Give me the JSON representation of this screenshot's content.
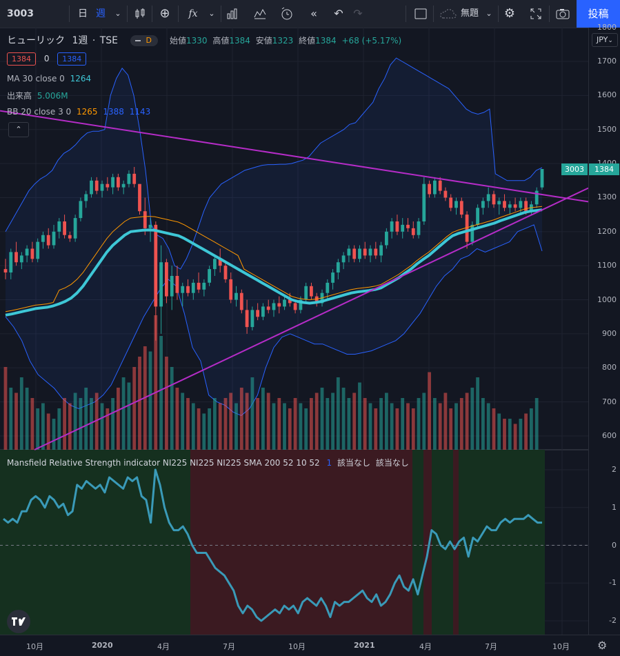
{
  "toolbar": {
    "symbol": "3003",
    "interval_day": "日",
    "interval_week": "週",
    "indicators_label": "fx",
    "layout_name": "無題",
    "post_label": "投稿"
  },
  "header": {
    "name": "ヒューリック",
    "interval": "1週",
    "exchange": "TSE",
    "d_badge": "D",
    "open_label": "始値",
    "open": "1330",
    "high_label": "高値",
    "high": "1384",
    "low_label": "安値",
    "low": "1323",
    "close_label": "終値",
    "close": "1384",
    "change": "+68 (+5.17%)",
    "sell": "1384",
    "spread": "0",
    "buy": "1384"
  },
  "legends": {
    "ma": {
      "label": "MA 30 close 0",
      "value": "1264"
    },
    "volume": {
      "label": "出来高",
      "value": "5.006M"
    },
    "bb": {
      "label": "BB 20 close 3 0",
      "basis": "1265",
      "upper": "1388",
      "lower": "1143"
    },
    "mansfield": {
      "label": "Mansfield Relative Strength indicator NI225 NI225 NI225 SMA 200 52 10 52",
      "value": "1",
      "na1": "該当なし",
      "na2": "該当なし"
    }
  },
  "price_axis": {
    "currency": "JPY",
    "labels": [
      "1800",
      "1700",
      "1600",
      "1500",
      "1400",
      "1300",
      "1200",
      "1100",
      "1000",
      "900",
      "800",
      "700",
      "600"
    ],
    "symbol_tag": "3003",
    "last_price": "1384"
  },
  "rs_axis": {
    "labels": [
      "2",
      "1",
      "0",
      "-1",
      "-2"
    ]
  },
  "time_axis": {
    "labels": [
      "10月",
      "2020",
      "4月",
      "7月",
      "10月",
      "2021",
      "4月",
      "7月",
      "10月"
    ]
  },
  "colors": {
    "up": "#26a69a",
    "down": "#ef5350",
    "ma": "#3ec7d6",
    "bb": "#2962ff",
    "bb_basis": "#ff9800",
    "trend": "#b52cc7",
    "rs": "#3a9ab8"
  },
  "chart_data": [
    {
      "type": "candlestick",
      "title": "",
      "y_axis_range": [
        550,
        1800
      ],
      "candles": [
        {
          "o": 1090,
          "h": 1120,
          "l": 1060,
          "c": 1080
        },
        {
          "o": 1080,
          "h": 1150,
          "l": 1060,
          "c": 1140
        },
        {
          "o": 1140,
          "h": 1170,
          "l": 1100,
          "c": 1110
        },
        {
          "o": 1110,
          "h": 1140,
          "l": 1090,
          "c": 1130
        },
        {
          "o": 1130,
          "h": 1160,
          "l": 1110,
          "c": 1150
        },
        {
          "o": 1150,
          "h": 1170,
          "l": 1110,
          "c": 1120
        },
        {
          "o": 1120,
          "h": 1180,
          "l": 1110,
          "c": 1170
        },
        {
          "o": 1170,
          "h": 1200,
          "l": 1150,
          "c": 1190
        },
        {
          "o": 1190,
          "h": 1210,
          "l": 1150,
          "c": 1160
        },
        {
          "o": 1160,
          "h": 1220,
          "l": 1150,
          "c": 1200
        },
        {
          "o": 1200,
          "h": 1240,
          "l": 1180,
          "c": 1230
        },
        {
          "o": 1230,
          "h": 1250,
          "l": 1180,
          "c": 1190
        },
        {
          "o": 1190,
          "h": 1200,
          "l": 1170,
          "c": 1180
        },
        {
          "o": 1180,
          "h": 1250,
          "l": 1170,
          "c": 1240
        },
        {
          "o": 1240,
          "h": 1300,
          "l": 1230,
          "c": 1290
        },
        {
          "o": 1290,
          "h": 1320,
          "l": 1270,
          "c": 1310
        },
        {
          "o": 1310,
          "h": 1360,
          "l": 1300,
          "c": 1350
        },
        {
          "o": 1350,
          "h": 1360,
          "l": 1310,
          "c": 1320
        },
        {
          "o": 1320,
          "h": 1350,
          "l": 1300,
          "c": 1340
        },
        {
          "o": 1340,
          "h": 1360,
          "l": 1320,
          "c": 1330
        },
        {
          "o": 1330,
          "h": 1370,
          "l": 1310,
          "c": 1360
        },
        {
          "o": 1360,
          "h": 1370,
          "l": 1320,
          "c": 1330
        },
        {
          "o": 1330,
          "h": 1350,
          "l": 1310,
          "c": 1340
        },
        {
          "o": 1340,
          "h": 1380,
          "l": 1330,
          "c": 1370
        },
        {
          "o": 1370,
          "h": 1390,
          "l": 1330,
          "c": 1340
        },
        {
          "o": 1340,
          "h": 1340,
          "l": 1250,
          "c": 1260
        },
        {
          "o": 1260,
          "h": 1300,
          "l": 1190,
          "c": 1210
        },
        {
          "o": 1210,
          "h": 1240,
          "l": 1170,
          "c": 1220
        },
        {
          "o": 1220,
          "h": 1230,
          "l": 880,
          "c": 980
        },
        {
          "o": 980,
          "h": 1160,
          "l": 900,
          "c": 1110
        },
        {
          "o": 1110,
          "h": 1120,
          "l": 990,
          "c": 1010
        },
        {
          "o": 1010,
          "h": 1100,
          "l": 970,
          "c": 1070
        },
        {
          "o": 1070,
          "h": 1100,
          "l": 1000,
          "c": 1020
        },
        {
          "o": 1020,
          "h": 1050,
          "l": 980,
          "c": 1040
        },
        {
          "o": 1040,
          "h": 1060,
          "l": 1010,
          "c": 1020
        },
        {
          "o": 1020,
          "h": 1060,
          "l": 1000,
          "c": 1050
        },
        {
          "o": 1050,
          "h": 1080,
          "l": 1020,
          "c": 1030
        },
        {
          "o": 1030,
          "h": 1060,
          "l": 1010,
          "c": 1050
        },
        {
          "o": 1050,
          "h": 1100,
          "l": 1040,
          "c": 1090
        },
        {
          "o": 1090,
          "h": 1130,
          "l": 1070,
          "c": 1120
        },
        {
          "o": 1120,
          "h": 1150,
          "l": 1080,
          "c": 1100
        },
        {
          "o": 1100,
          "h": 1110,
          "l": 1050,
          "c": 1060
        },
        {
          "o": 1060,
          "h": 1080,
          "l": 990,
          "c": 1000
        },
        {
          "o": 1000,
          "h": 1040,
          "l": 980,
          "c": 1020
        },
        {
          "o": 1020,
          "h": 1030,
          "l": 960,
          "c": 970
        },
        {
          "o": 970,
          "h": 1000,
          "l": 900,
          "c": 920
        },
        {
          "o": 920,
          "h": 980,
          "l": 910,
          "c": 970
        },
        {
          "o": 970,
          "h": 990,
          "l": 940,
          "c": 950
        },
        {
          "o": 950,
          "h": 990,
          "l": 940,
          "c": 980
        },
        {
          "o": 980,
          "h": 1000,
          "l": 960,
          "c": 970
        },
        {
          "o": 970,
          "h": 1000,
          "l": 950,
          "c": 990
        },
        {
          "o": 990,
          "h": 1010,
          "l": 960,
          "c": 980
        },
        {
          "o": 980,
          "h": 1010,
          "l": 970,
          "c": 1000
        },
        {
          "o": 1000,
          "h": 1020,
          "l": 980,
          "c": 990
        },
        {
          "o": 990,
          "h": 1000,
          "l": 960,
          "c": 970
        },
        {
          "o": 970,
          "h": 1010,
          "l": 960,
          "c": 1000
        },
        {
          "o": 1000,
          "h": 1050,
          "l": 990,
          "c": 1040
        },
        {
          "o": 1040,
          "h": 1050,
          "l": 1000,
          "c": 1010
        },
        {
          "o": 1010,
          "h": 1020,
          "l": 980,
          "c": 990
        },
        {
          "o": 990,
          "h": 1030,
          "l": 980,
          "c": 1020
        },
        {
          "o": 1020,
          "h": 1060,
          "l": 1000,
          "c": 1050
        },
        {
          "o": 1050,
          "h": 1090,
          "l": 1030,
          "c": 1080
        },
        {
          "o": 1080,
          "h": 1120,
          "l": 1060,
          "c": 1110
        },
        {
          "o": 1110,
          "h": 1140,
          "l": 1090,
          "c": 1130
        },
        {
          "o": 1130,
          "h": 1160,
          "l": 1110,
          "c": 1150
        },
        {
          "o": 1150,
          "h": 1160,
          "l": 1110,
          "c": 1120
        },
        {
          "o": 1120,
          "h": 1160,
          "l": 1110,
          "c": 1150
        },
        {
          "o": 1150,
          "h": 1170,
          "l": 1120,
          "c": 1130
        },
        {
          "o": 1130,
          "h": 1160,
          "l": 1110,
          "c": 1150
        },
        {
          "o": 1150,
          "h": 1170,
          "l": 1120,
          "c": 1130
        },
        {
          "o": 1130,
          "h": 1170,
          "l": 1110,
          "c": 1160
        },
        {
          "o": 1160,
          "h": 1210,
          "l": 1150,
          "c": 1200
        },
        {
          "o": 1200,
          "h": 1240,
          "l": 1180,
          "c": 1230
        },
        {
          "o": 1230,
          "h": 1250,
          "l": 1190,
          "c": 1200
        },
        {
          "o": 1200,
          "h": 1240,
          "l": 1180,
          "c": 1220
        },
        {
          "o": 1220,
          "h": 1240,
          "l": 1200,
          "c": 1210
        },
        {
          "o": 1210,
          "h": 1230,
          "l": 1180,
          "c": 1190
        },
        {
          "o": 1190,
          "h": 1240,
          "l": 1180,
          "c": 1230
        },
        {
          "o": 1230,
          "h": 1360,
          "l": 1220,
          "c": 1340
        },
        {
          "o": 1340,
          "h": 1350,
          "l": 1300,
          "c": 1310
        },
        {
          "o": 1310,
          "h": 1360,
          "l": 1300,
          "c": 1350
        },
        {
          "o": 1350,
          "h": 1360,
          "l": 1310,
          "c": 1320
        },
        {
          "o": 1320,
          "h": 1330,
          "l": 1290,
          "c": 1300
        },
        {
          "o": 1300,
          "h": 1310,
          "l": 1260,
          "c": 1270
        },
        {
          "o": 1270,
          "h": 1300,
          "l": 1250,
          "c": 1290
        },
        {
          "o": 1290,
          "h": 1300,
          "l": 1240,
          "c": 1250
        },
        {
          "o": 1250,
          "h": 1260,
          "l": 1150,
          "c": 1170
        },
        {
          "o": 1170,
          "h": 1230,
          "l": 1160,
          "c": 1220
        },
        {
          "o": 1220,
          "h": 1280,
          "l": 1210,
          "c": 1270
        },
        {
          "o": 1270,
          "h": 1300,
          "l": 1250,
          "c": 1290
        },
        {
          "o": 1290,
          "h": 1330,
          "l": 1270,
          "c": 1310
        },
        {
          "o": 1310,
          "h": 1320,
          "l": 1270,
          "c": 1280
        },
        {
          "o": 1280,
          "h": 1300,
          "l": 1250,
          "c": 1290
        },
        {
          "o": 1290,
          "h": 1310,
          "l": 1260,
          "c": 1270
        },
        {
          "o": 1270,
          "h": 1290,
          "l": 1250,
          "c": 1280
        },
        {
          "o": 1280,
          "h": 1300,
          "l": 1260,
          "c": 1270
        },
        {
          "o": 1270,
          "h": 1300,
          "l": 1250,
          "c": 1290
        },
        {
          "o": 1290,
          "h": 1300,
          "l": 1250,
          "c": 1260
        },
        {
          "o": 1260,
          "h": 1290,
          "l": 1250,
          "c": 1280
        },
        {
          "o": 1280,
          "h": 1330,
          "l": 1270,
          "c": 1320
        },
        {
          "o": 1330,
          "h": 1384,
          "l": 1323,
          "c": 1384
        }
      ],
      "ma30": [
        955,
        958,
        962,
        966,
        970,
        974,
        976,
        978,
        982,
        988,
        995,
        1005,
        1020,
        1040,
        1065,
        1090,
        1115,
        1140,
        1160,
        1175,
        1190,
        1200,
        1202,
        1204,
        1205,
        1204,
        1200,
        1196,
        1192,
        1188,
        1180,
        1170,
        1160,
        1150,
        1140,
        1130,
        1120,
        1110,
        1100,
        1090,
        1080,
        1070,
        1060,
        1050,
        1040,
        1030,
        1020,
        1010,
        1000,
        995,
        992,
        990,
        992,
        995,
        1000,
        1005,
        1010,
        1015,
        1020,
        1023,
        1025,
        1027,
        1030,
        1035,
        1045,
        1055,
        1065,
        1078,
        1090,
        1105,
        1118,
        1130,
        1145,
        1160,
        1175,
        1188,
        1195,
        1200,
        1205,
        1210,
        1215,
        1220,
        1225,
        1232,
        1238,
        1244,
        1250,
        1256,
        1260,
        1262,
        1264
      ],
      "bb_upper": [
        1200,
        1230,
        1260,
        1290,
        1320,
        1340,
        1355,
        1365,
        1380,
        1410,
        1430,
        1440,
        1455,
        1475,
        1490,
        1495,
        1495,
        1500,
        1600,
        1650,
        1680,
        1660,
        1600,
        1500,
        1380,
        1220,
        1190,
        1180,
        1150,
        1100,
        1090,
        1120,
        1160,
        1210,
        1260,
        1300,
        1320,
        1340,
        1350,
        1360,
        1370,
        1380,
        1385,
        1390,
        1395,
        1397,
        1397,
        1398,
        1398,
        1400,
        1405,
        1410,
        1420,
        1440,
        1460,
        1470,
        1480,
        1490,
        1500,
        1515,
        1520,
        1540,
        1560,
        1580,
        1620,
        1650,
        1690,
        1710,
        1700,
        1690,
        1680,
        1670,
        1660,
        1650,
        1640,
        1630,
        1620,
        1600,
        1580,
        1560,
        1550,
        1545,
        1550,
        1560,
        1370,
        1360,
        1350,
        1350,
        1350,
        1350,
        1360,
        1380,
        1388
      ],
      "bb_lower": [
        950,
        920,
        880,
        820,
        780,
        760,
        740,
        710,
        690,
        680,
        690,
        700,
        720,
        750,
        800,
        850,
        900,
        950,
        990,
        1030,
        1060,
        1040,
        960,
        860,
        820,
        720,
        700,
        690,
        670,
        660,
        680,
        720,
        800,
        860,
        890,
        900,
        890,
        880,
        870,
        870,
        860,
        850,
        840,
        840,
        845,
        850,
        860,
        870,
        880,
        900,
        930,
        960,
        1000,
        1040,
        1070,
        1090,
        1120,
        1130,
        1150,
        1140,
        1150,
        1160,
        1170,
        1200,
        1210,
        1220,
        1143
      ]
    },
    {
      "type": "bar",
      "title": "",
      "description_series": "volume",
      "values": [
        0.8,
        0.6,
        0.55,
        0.7,
        0.6,
        0.5,
        0.4,
        0.45,
        0.35,
        0.3,
        0.4,
        0.5,
        0.45,
        0.55,
        0.5,
        0.6,
        0.5,
        0.55,
        0.45,
        0.4,
        0.5,
        0.6,
        0.7,
        0.65,
        0.8,
        0.9,
        1.0,
        0.95,
        1.3,
        1.1,
        0.9,
        0.8,
        0.6,
        0.55,
        0.5,
        0.45,
        0.4,
        0.35,
        0.4,
        0.5,
        0.45,
        0.5,
        0.55,
        0.45,
        0.6,
        0.55,
        0.7,
        0.5,
        0.6,
        0.55,
        0.45,
        0.5,
        0.45,
        0.4,
        0.5,
        0.45,
        0.4,
        0.5,
        0.55,
        0.6,
        0.5,
        0.55,
        0.7,
        0.6,
        0.5,
        0.55,
        0.65,
        0.5,
        0.45,
        0.4,
        0.5,
        0.55,
        0.45,
        0.4,
        0.5,
        0.45,
        0.4,
        0.5,
        0.55,
        0.75,
        0.5,
        0.45,
        0.55,
        0.4,
        0.45,
        0.5,
        0.55,
        0.6,
        0.7,
        0.5,
        0.45,
        0.4,
        0.35,
        0.3,
        0.3,
        0.25,
        0.3,
        0.35,
        0.4,
        0.5
      ]
    },
    {
      "type": "line",
      "title": "",
      "series_label": "Mansfield RS",
      "y_axis_range": [
        -2.4,
        2.5
      ],
      "values": [
        0.7,
        0.6,
        0.7,
        0.6,
        0.9,
        0.9,
        1.2,
        1.3,
        1.2,
        1.0,
        1.3,
        1.2,
        1.0,
        1.1,
        0.8,
        0.9,
        1.6,
        1.5,
        1.7,
        1.6,
        1.5,
        1.6,
        1.4,
        1.8,
        1.7,
        1.6,
        1.5,
        1.8,
        1.7,
        1.8,
        1.3,
        1.2,
        0.6,
        2.0,
        1.6,
        1.0,
        0.6,
        0.4,
        0.4,
        0.5,
        0.3,
        0.0,
        -0.2,
        -0.2,
        -0.2,
        -0.4,
        -0.6,
        -0.7,
        -0.8,
        -1.0,
        -1.2,
        -1.6,
        -1.8,
        -1.6,
        -1.7,
        -1.9,
        -2.0,
        -1.9,
        -1.8,
        -1.7,
        -1.8,
        -1.6,
        -1.7,
        -1.6,
        -1.8,
        -1.5,
        -1.4,
        -1.5,
        -1.6,
        -1.4,
        -1.6,
        -1.9,
        -1.5,
        -1.6,
        -1.5,
        -1.5,
        -1.4,
        -1.3,
        -1.2,
        -1.4,
        -1.5,
        -1.3,
        -1.6,
        -1.5,
        -1.3,
        -1.0,
        -0.8,
        -1.1,
        -1.2,
        -0.9,
        -1.3,
        -0.8,
        -0.3,
        0.4,
        0.3,
        0.0,
        -0.1,
        0.1,
        -0.1,
        0.1,
        0.2,
        -0.3,
        0.2,
        0.1,
        0.3,
        0.5,
        0.4,
        0.4,
        0.6,
        0.7,
        0.6,
        0.7,
        0.7,
        0.7,
        0.8,
        0.7,
        0.6,
        0.6
      ]
    }
  ]
}
